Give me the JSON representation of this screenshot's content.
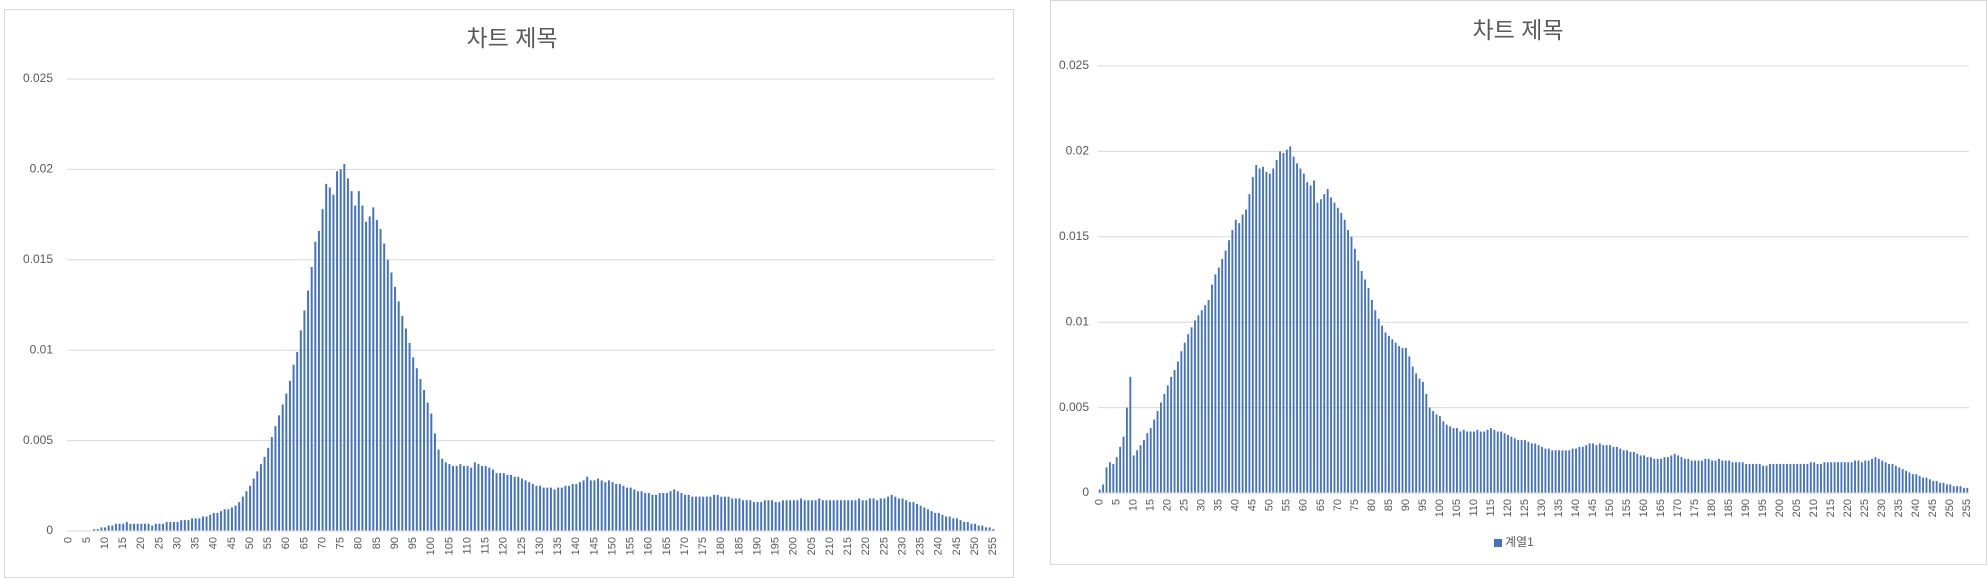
{
  "chart_data": [
    {
      "type": "bar",
      "title": "차트 제목",
      "categories": [
        0,
        null,
        null,
        null,
        null,
        5,
        null,
        null,
        null,
        null,
        10,
        null,
        null,
        null,
        null,
        15,
        null,
        null,
        null,
        null,
        20,
        null,
        null,
        null,
        null,
        25,
        null,
        null,
        null,
        null,
        30,
        null,
        null,
        null,
        null,
        35,
        null,
        null,
        null,
        null,
        40,
        null,
        null,
        null,
        null,
        45,
        null,
        null,
        null,
        null,
        50,
        null,
        null,
        null,
        null,
        55,
        null,
        null,
        null,
        null,
        60,
        null,
        null,
        null,
        null,
        65,
        null,
        null,
        null,
        null,
        70,
        null,
        null,
        null,
        null,
        75,
        null,
        null,
        null,
        null,
        80,
        null,
        null,
        null,
        null,
        85,
        null,
        null,
        null,
        null,
        90,
        null,
        null,
        null,
        null,
        95,
        null,
        null,
        null,
        null,
        100,
        null,
        null,
        null,
        null,
        105,
        null,
        null,
        null,
        null,
        110,
        null,
        null,
        null,
        null,
        115,
        null,
        null,
        null,
        null,
        120,
        null,
        null,
        null,
        null,
        125,
        null,
        null,
        null,
        null,
        130,
        null,
        null,
        null,
        null,
        135,
        null,
        null,
        null,
        null,
        140,
        null,
        null,
        null,
        null,
        145,
        null,
        null,
        null,
        null,
        150,
        null,
        null,
        null,
        null,
        155,
        null,
        null,
        null,
        null,
        160,
        null,
        null,
        null,
        null,
        165,
        null,
        null,
        null,
        null,
        170,
        null,
        null,
        null,
        null,
        175,
        null,
        null,
        null,
        null,
        180,
        null,
        null,
        null,
        null,
        185,
        null,
        null,
        null,
        null,
        190,
        null,
        null,
        null,
        null,
        195,
        null,
        null,
        null,
        null,
        200,
        null,
        null,
        null,
        null,
        205,
        null,
        null,
        null,
        null,
        210,
        null,
        null,
        null,
        null,
        215,
        null,
        null,
        null,
        null,
        220,
        null,
        null,
        null,
        null,
        225,
        null,
        null,
        null,
        null,
        230,
        null,
        null,
        null,
        null,
        235,
        null,
        null,
        null,
        null,
        240,
        null,
        null,
        null,
        null,
        245,
        null,
        null,
        null,
        null,
        250,
        null,
        null,
        null,
        null,
        255
      ],
      "values": [
        0,
        0,
        0,
        0,
        0,
        0,
        0,
        0.0001,
        0.0001,
        0.0002,
        0.0002,
        0.0003,
        0.0003,
        0.0004,
        0.0004,
        0.0004,
        0.0005,
        0.0004,
        0.0004,
        0.0004,
        0.0004,
        0.0004,
        0.0004,
        0.0003,
        0.0004,
        0.0004,
        0.0004,
        0.0005,
        0.0005,
        0.0005,
        0.0005,
        0.0006,
        0.0006,
        0.0006,
        0.0007,
        0.0007,
        0.0007,
        0.0008,
        0.0008,
        0.0009,
        0.001,
        0.001,
        0.0011,
        0.0012,
        0.0012,
        0.0013,
        0.0014,
        0.0016,
        0.0019,
        0.0022,
        0.0025,
        0.0029,
        0.0033,
        0.0037,
        0.0041,
        0.0046,
        0.0052,
        0.0058,
        0.0064,
        0.007,
        0.0076,
        0.0083,
        0.0092,
        0.0099,
        0.0111,
        0.0122,
        0.0133,
        0.0146,
        0.016,
        0.0166,
        0.0178,
        0.0192,
        0.019,
        0.0186,
        0.0199,
        0.02,
        0.0203,
        0.0195,
        0.0188,
        0.018,
        0.0188,
        0.018,
        0.0171,
        0.0174,
        0.0179,
        0.0172,
        0.0167,
        0.0159,
        0.015,
        0.0143,
        0.0135,
        0.0127,
        0.0119,
        0.0112,
        0.0104,
        0.0096,
        0.009,
        0.0084,
        0.0078,
        0.0071,
        0.0065,
        0.0054,
        0.0045,
        0.004,
        0.0038,
        0.0037,
        0.0036,
        0.0036,
        0.0037,
        0.0036,
        0.0036,
        0.0035,
        0.0038,
        0.0037,
        0.0036,
        0.0036,
        0.0035,
        0.0034,
        0.0032,
        0.0032,
        0.0032,
        0.0031,
        0.0031,
        0.003,
        0.003,
        0.0029,
        0.0028,
        0.0027,
        0.0026,
        0.0025,
        0.0025,
        0.0024,
        0.0024,
        0.0024,
        0.0023,
        0.0024,
        0.0024,
        0.0025,
        0.0025,
        0.0026,
        0.0026,
        0.0027,
        0.0028,
        0.003,
        0.0028,
        0.0028,
        0.0029,
        0.0028,
        0.0027,
        0.0028,
        0.0027,
        0.0026,
        0.0026,
        0.0025,
        0.0024,
        0.0024,
        0.0023,
        0.0022,
        0.0022,
        0.0021,
        0.0021,
        0.002,
        0.002,
        0.0021,
        0.0021,
        0.0021,
        0.0022,
        0.0023,
        0.0022,
        0.0021,
        0.002,
        0.002,
        0.0019,
        0.0019,
        0.0019,
        0.0019,
        0.0019,
        0.0019,
        0.002,
        0.002,
        0.0019,
        0.0019,
        0.0019,
        0.0018,
        0.0018,
        0.0018,
        0.0017,
        0.0017,
        0.0017,
        0.0016,
        0.0016,
        0.0016,
        0.0017,
        0.0017,
        0.0017,
        0.0016,
        0.0016,
        0.0017,
        0.0017,
        0.0017,
        0.0017,
        0.0017,
        0.0018,
        0.0017,
        0.0017,
        0.0017,
        0.0017,
        0.0018,
        0.0017,
        0.0017,
        0.0017,
        0.0017,
        0.0017,
        0.0017,
        0.0017,
        0.0017,
        0.0017,
        0.0017,
        0.0018,
        0.0017,
        0.0017,
        0.0018,
        0.0018,
        0.0017,
        0.0018,
        0.0018,
        0.0019,
        0.002,
        0.0019,
        0.0018,
        0.0018,
        0.0017,
        0.0016,
        0.0016,
        0.0015,
        0.0014,
        0.0013,
        0.0012,
        0.0011,
        0.001,
        0.001,
        0.0009,
        0.0008,
        0.0008,
        0.0007,
        0.0007,
        0.0006,
        0.0005,
        0.0005,
        0.0004,
        0.0004,
        0.0003,
        0.0003,
        0.0002,
        0.0002,
        0.0001
      ],
      "color": "#4472c4",
      "ylim": [
        0,
        0.025
      ],
      "yticks": [
        0,
        0.005,
        0.01,
        0.015,
        0.02,
        0.025
      ],
      "grid": true
    },
    {
      "type": "bar",
      "title": "차트 제목",
      "categories": [
        0,
        null,
        null,
        null,
        null,
        5,
        null,
        null,
        null,
        null,
        10,
        null,
        null,
        null,
        null,
        15,
        null,
        null,
        null,
        null,
        20,
        null,
        null,
        null,
        null,
        25,
        null,
        null,
        null,
        null,
        30,
        null,
        null,
        null,
        null,
        35,
        null,
        null,
        null,
        null,
        40,
        null,
        null,
        null,
        null,
        45,
        null,
        null,
        null,
        null,
        50,
        null,
        null,
        null,
        null,
        55,
        null,
        null,
        null,
        null,
        60,
        null,
        null,
        null,
        null,
        65,
        null,
        null,
        null,
        null,
        70,
        null,
        null,
        null,
        null,
        75,
        null,
        null,
        null,
        null,
        80,
        null,
        null,
        null,
        null,
        85,
        null,
        null,
        null,
        null,
        90,
        null,
        null,
        null,
        null,
        95,
        null,
        null,
        null,
        null,
        100,
        null,
        null,
        null,
        null,
        105,
        null,
        null,
        null,
        null,
        110,
        null,
        null,
        null,
        null,
        115,
        null,
        null,
        null,
        null,
        120,
        null,
        null,
        null,
        null,
        125,
        null,
        null,
        null,
        null,
        130,
        null,
        null,
        null,
        null,
        135,
        null,
        null,
        null,
        null,
        140,
        null,
        null,
        null,
        null,
        145,
        null,
        null,
        null,
        null,
        150,
        null,
        null,
        null,
        null,
        155,
        null,
        null,
        null,
        null,
        160,
        null,
        null,
        null,
        null,
        165,
        null,
        null,
        null,
        null,
        170,
        null,
        null,
        null,
        null,
        175,
        null,
        null,
        null,
        null,
        180,
        null,
        null,
        null,
        null,
        185,
        null,
        null,
        null,
        null,
        190,
        null,
        null,
        null,
        null,
        195,
        null,
        null,
        null,
        null,
        200,
        null,
        null,
        null,
        null,
        205,
        null,
        null,
        null,
        null,
        210,
        null,
        null,
        null,
        null,
        215,
        null,
        null,
        null,
        null,
        220,
        null,
        null,
        null,
        null,
        225,
        null,
        null,
        null,
        null,
        230,
        null,
        null,
        null,
        null,
        235,
        null,
        null,
        null,
        null,
        240,
        null,
        null,
        null,
        null,
        245,
        null,
        null,
        null,
        null,
        250,
        null,
        null,
        null,
        null,
        255
      ],
      "series": [
        {
          "name": "계열1",
          "color": "#4472c4",
          "values": [
            0.0002,
            0.0005,
            0.0015,
            0.0018,
            0.0017,
            0.0021,
            0.0027,
            0.0033,
            0.005,
            0.0068,
            0.0022,
            0.0025,
            0.0028,
            0.0031,
            0.0035,
            0.0038,
            0.0043,
            0.0048,
            0.0053,
            0.0058,
            0.0063,
            0.0068,
            0.0072,
            0.0077,
            0.0083,
            0.0088,
            0.0093,
            0.0097,
            0.0101,
            0.0104,
            0.0107,
            0.011,
            0.0113,
            0.0122,
            0.0128,
            0.0132,
            0.0137,
            0.0142,
            0.0148,
            0.0154,
            0.016,
            0.0158,
            0.0163,
            0.0166,
            0.0175,
            0.0185,
            0.0192,
            0.019,
            0.0191,
            0.0188,
            0.0187,
            0.019,
            0.0195,
            0.02,
            0.0199,
            0.0201,
            0.0203,
            0.0197,
            0.0193,
            0.019,
            0.0187,
            0.0182,
            0.018,
            0.0183,
            0.017,
            0.0172,
            0.0175,
            0.0178,
            0.0173,
            0.017,
            0.0167,
            0.0164,
            0.016,
            0.0154,
            0.015,
            0.0143,
            0.0136,
            0.013,
            0.0125,
            0.012,
            0.0113,
            0.0107,
            0.0102,
            0.0098,
            0.0094,
            0.0092,
            0.009,
            0.0088,
            0.0086,
            0.0085,
            0.0085,
            0.008,
            0.0074,
            0.007,
            0.0067,
            0.0065,
            0.0058,
            0.005,
            0.0048,
            0.0046,
            0.0045,
            0.0042,
            0.004,
            0.0039,
            0.0038,
            0.0038,
            0.0036,
            0.0037,
            0.0036,
            0.0036,
            0.0036,
            0.0037,
            0.0036,
            0.0036,
            0.0037,
            0.0038,
            0.0037,
            0.0036,
            0.0036,
            0.0035,
            0.0034,
            0.0033,
            0.0032,
            0.0031,
            0.0031,
            0.0031,
            0.003,
            0.0029,
            0.0029,
            0.0028,
            0.0027,
            0.0026,
            0.0026,
            0.0025,
            0.0025,
            0.0025,
            0.0025,
            0.0025,
            0.0025,
            0.0026,
            0.0026,
            0.0027,
            0.0027,
            0.0028,
            0.0029,
            0.0029,
            0.0028,
            0.0029,
            0.0028,
            0.0028,
            0.0028,
            0.0027,
            0.0027,
            0.0026,
            0.0025,
            0.0025,
            0.0024,
            0.0024,
            0.0023,
            0.0022,
            0.0022,
            0.0021,
            0.0021,
            0.002,
            0.002,
            0.002,
            0.0021,
            0.0021,
            0.0022,
            0.0023,
            0.0022,
            0.0021,
            0.002,
            0.002,
            0.0019,
            0.0019,
            0.0019,
            0.0019,
            0.002,
            0.002,
            0.0019,
            0.0019,
            0.002,
            0.0019,
            0.0019,
            0.0019,
            0.0018,
            0.0018,
            0.0018,
            0.0018,
            0.0017,
            0.0017,
            0.0017,
            0.0017,
            0.0017,
            0.0016,
            0.0016,
            0.0017,
            0.0017,
            0.0017,
            0.0017,
            0.0017,
            0.0017,
            0.0017,
            0.0017,
            0.0017,
            0.0017,
            0.0017,
            0.0017,
            0.0018,
            0.0018,
            0.0017,
            0.0017,
            0.0018,
            0.0018,
            0.0018,
            0.0018,
            0.0018,
            0.0018,
            0.0018,
            0.0018,
            0.0018,
            0.0019,
            0.0019,
            0.0018,
            0.0019,
            0.0019,
            0.002,
            0.0021,
            0.002,
            0.0019,
            0.0018,
            0.0017,
            0.0017,
            0.0016,
            0.0015,
            0.0014,
            0.0013,
            0.0012,
            0.0011,
            0.0011,
            0.001,
            0.0009,
            0.0009,
            0.0008,
            0.0007,
            0.0007,
            0.0006,
            0.0006,
            0.0005,
            0.0005,
            0.0004,
            0.0004,
            0.0004,
            0.0003,
            0.0003
          ]
        }
      ],
      "ylim": [
        0,
        0.025
      ],
      "yticks": [
        0,
        0.005,
        0.01,
        0.015,
        0.02,
        0.025
      ],
      "grid": true,
      "legend": "bottom"
    }
  ]
}
